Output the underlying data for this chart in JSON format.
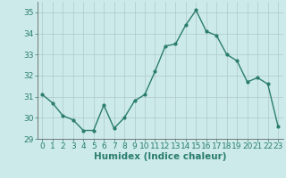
{
  "x": [
    0,
    1,
    2,
    3,
    4,
    5,
    6,
    7,
    8,
    9,
    10,
    11,
    12,
    13,
    14,
    15,
    16,
    17,
    18,
    19,
    20,
    21,
    22,
    23
  ],
  "y": [
    31.1,
    30.7,
    30.1,
    29.9,
    29.4,
    29.4,
    30.6,
    29.5,
    30.0,
    30.8,
    31.1,
    32.2,
    33.4,
    33.5,
    34.4,
    35.1,
    34.1,
    33.9,
    33.0,
    32.7,
    31.7,
    31.9,
    31.6,
    29.6
  ],
  "line_color": "#2a7d6e",
  "marker": "o",
  "marker_size": 2.0,
  "line_width": 1.0,
  "xlabel": "Humidex (Indice chaleur)",
  "xlim": [
    -0.5,
    23.5
  ],
  "ylim": [
    29.0,
    35.5
  ],
  "yticks": [
    29,
    30,
    31,
    32,
    33,
    34,
    35
  ],
  "xticks": [
    0,
    1,
    2,
    3,
    4,
    5,
    6,
    7,
    8,
    9,
    10,
    11,
    12,
    13,
    14,
    15,
    16,
    17,
    18,
    19,
    20,
    21,
    22,
    23
  ],
  "bg_color": "#cceaea",
  "grid_color": "#b0c8c8",
  "tick_color": "#2a7d6e",
  "label_color": "#2a7d6e",
  "font_size": 6.5,
  "xlabel_font_size": 7.5
}
